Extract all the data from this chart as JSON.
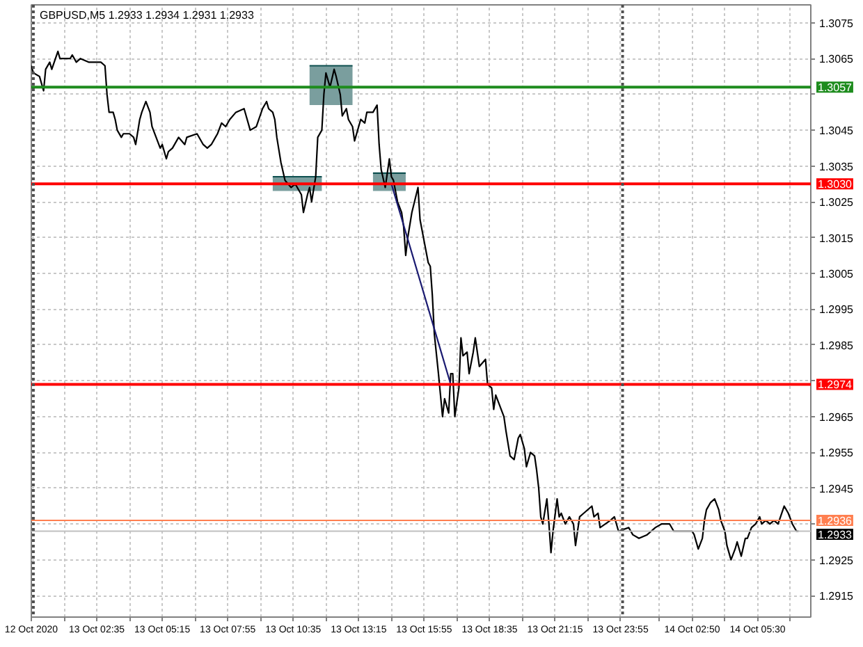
{
  "chart_data": {
    "type": "line",
    "title": "GBPUSD,M5 1.2933 1.2934 1.2931 1.2933",
    "xlim": [
      "2020-10-12T23:55",
      "2020-10-14T07:40"
    ],
    "ylim": [
      1.2909,
      1.308
    ],
    "xticks": [
      {
        "value": "2020-10-12T23:55",
        "label": "12 Oct 2020"
      },
      {
        "value": "2020-10-13T01:15",
        "label": null
      },
      {
        "value": "2020-10-13T02:35",
        "label": "13 Oct 02:35"
      },
      {
        "value": "2020-10-13T03:55",
        "label": null
      },
      {
        "value": "2020-10-13T05:15",
        "label": "13 Oct 05:15"
      },
      {
        "value": "2020-10-13T06:35",
        "label": null
      },
      {
        "value": "2020-10-13T07:55",
        "label": "13 Oct 07:55"
      },
      {
        "value": "2020-10-13T09:15",
        "label": null
      },
      {
        "value": "2020-10-13T10:35",
        "label": "13 Oct 10:35"
      },
      {
        "value": "2020-10-13T11:55",
        "label": null
      },
      {
        "value": "2020-10-13T13:15",
        "label": "13 Oct 13:15"
      },
      {
        "value": "2020-10-13T14:35",
        "label": null
      },
      {
        "value": "2020-10-13T15:55",
        "label": "13 Oct 15:55"
      },
      {
        "value": "2020-10-13T17:15",
        "label": null
      },
      {
        "value": "2020-10-13T18:35",
        "label": "13 Oct 18:35"
      },
      {
        "value": "2020-10-13T19:55",
        "label": null
      },
      {
        "value": "2020-10-13T21:15",
        "label": "13 Oct 21:15"
      },
      {
        "value": "2020-10-13T22:35",
        "label": null
      },
      {
        "value": "2020-10-13T23:55",
        "label": "13 Oct 23:55"
      },
      {
        "value": "2020-10-14T01:30",
        "label": null
      },
      {
        "value": "2020-10-14T02:50",
        "label": "14 Oct 02:50"
      },
      {
        "value": "2020-10-14T04:10",
        "label": null
      },
      {
        "value": "2020-10-14T05:30",
        "label": "14 Oct 05:30"
      },
      {
        "value": "2020-10-14T06:50",
        "label": null
      }
    ],
    "yticks": [
      1.3075,
      1.3065,
      {
        "value": 1.3055,
        "label": null
      },
      1.3045,
      1.3035,
      1.3025,
      1.3015,
      1.3005,
      1.2995,
      1.2985,
      {
        "value": 1.2975,
        "label": null
      },
      1.2965,
      1.2955,
      1.2945,
      {
        "value": 1.2935,
        "label": null
      },
      1.2925,
      1.2915
    ],
    "grid": true,
    "series": [
      {
        "type": "line",
        "color": "#0d4f4f",
        "x": [
          "2020-10-13T09:45",
          "2020-10-13T11:45"
        ],
        "values": [
          1.3032,
          1.3032
        ],
        "lower": [
          1.3028,
          1.3028
        ],
        "upper": [
          1.3032,
          1.3032
        ]
      },
      {
        "type": "line",
        "color": "#0d4f4f",
        "x": [
          "2020-10-13T11:15",
          "2020-10-13T13:00"
        ],
        "values": [
          1.3063,
          1.3063
        ],
        "lower": [
          1.3052,
          1.3052
        ],
        "upper": [
          1.3063,
          1.3063
        ]
      },
      {
        "type": "line",
        "color": "#0d4f4f",
        "x": [
          "2020-10-13T13:50",
          "2020-10-13T15:10"
        ],
        "values": [
          1.3033,
          1.3033
        ],
        "lower": [
          1.3028,
          1.3028
        ],
        "upper": [
          1.3033,
          1.3033
        ]
      },
      {
        "color": "#000000",
        "x": [
          "2020-10-12T23:55",
          "2020-10-13T00:00",
          "2020-10-13T00:15",
          "2020-10-13T00:25",
          "2020-10-13T00:30",
          "2020-10-13T00:40",
          "2020-10-13T00:45",
          "2020-10-13T01:00",
          "2020-10-13T01:05",
          "2020-10-13T01:30",
          "2020-10-13T01:35",
          "2020-10-13T01:45",
          "2020-10-13T01:55",
          "2020-10-13T02:15",
          "2020-10-13T02:45",
          "2020-10-13T02:55",
          "2020-10-13T03:00",
          "2020-10-13T03:05",
          "2020-10-13T03:15",
          "2020-10-13T03:20",
          "2020-10-13T03:25",
          "2020-10-13T03:35",
          "2020-10-13T03:40",
          "2020-10-13T03:55",
          "2020-10-13T04:05",
          "2020-10-13T04:10",
          "2020-10-13T04:20",
          "2020-10-13T04:25",
          "2020-10-13T04:35",
          "2020-10-13T04:45",
          "2020-10-13T04:50",
          "2020-10-13T05:00",
          "2020-10-13T05:10",
          "2020-10-13T05:15",
          "2020-10-13T05:25",
          "2020-10-13T05:30",
          "2020-10-13T05:40",
          "2020-10-13T05:55",
          "2020-10-13T06:10",
          "2020-10-13T06:15",
          "2020-10-13T06:40",
          "2020-10-13T06:55",
          "2020-10-13T07:05",
          "2020-10-13T07:15",
          "2020-10-13T07:25",
          "2020-10-13T07:30",
          "2020-10-13T07:40",
          "2020-10-13T07:50",
          "2020-10-13T08:00",
          "2020-10-13T08:15",
          "2020-10-13T08:35",
          "2020-10-13T08:40",
          "2020-10-13T08:50",
          "2020-10-13T09:05",
          "2020-10-13T09:20",
          "2020-10-13T09:30",
          "2020-10-13T09:35",
          "2020-10-13T09:45",
          "2020-10-13T09:50",
          "2020-10-13T09:55",
          "2020-10-13T10:05",
          "2020-10-13T10:15",
          "2020-10-13T10:30",
          "2020-10-13T10:40",
          "2020-10-13T10:45",
          "2020-10-13T10:55",
          "2020-10-13T11:00",
          "2020-10-13T11:10",
          "2020-10-13T11:15",
          "2020-10-13T11:20",
          "2020-10-13T11:30",
          "2020-10-13T11:35",
          "2020-10-13T11:45",
          "2020-10-13T11:50",
          "2020-10-13T11:55",
          "2020-10-13T12:05",
          "2020-10-13T12:15",
          "2020-10-13T12:20",
          "2020-10-13T12:30",
          "2020-10-13T12:35",
          "2020-10-13T12:45",
          "2020-10-13T12:50",
          "2020-10-13T13:00",
          "2020-10-13T13:05",
          "2020-10-13T13:15",
          "2020-10-13T13:20",
          "2020-10-13T13:30",
          "2020-10-13T13:35",
          "2020-10-13T13:50",
          "2020-10-13T14:00",
          "2020-10-13T14:05",
          "2020-10-13T14:10",
          "2020-10-13T14:20",
          "2020-10-13T14:25",
          "2020-10-13T14:30",
          "2020-10-13T14:35",
          "2020-10-13T14:40",
          "2020-10-13T14:50",
          "2020-10-13T15:00",
          "2020-10-13T15:05",
          "2020-10-13T15:10",
          "2020-10-13T15:15",
          "2020-10-13T15:25",
          "2020-10-13T15:40",
          "2020-10-13T15:45",
          "2020-10-13T15:55",
          "2020-10-13T16:05",
          "2020-10-13T16:10",
          "2020-10-13T16:15",
          "2020-10-13T16:20",
          "2020-10-13T16:30",
          "2020-10-13T16:40",
          "2020-10-13T16:45",
          "2020-10-13T16:55",
          "2020-10-13T17:00",
          "2020-10-13T17:05",
          "2020-10-13T17:10",
          "2020-10-13T17:20",
          "2020-10-13T17:25",
          "2020-10-13T17:30",
          "2020-10-13T17:40",
          "2020-10-13T17:45",
          "2020-10-13T17:55",
          "2020-10-13T18:00",
          "2020-10-13T18:10",
          "2020-10-13T18:25",
          "2020-10-13T18:30",
          "2020-10-13T18:40",
          "2020-10-13T18:45",
          "2020-10-13T18:50",
          "2020-10-13T19:00",
          "2020-10-13T19:10",
          "2020-10-13T19:15",
          "2020-10-13T19:25",
          "2020-10-13T19:35",
          "2020-10-13T19:45",
          "2020-10-13T19:50",
          "2020-10-13T20:00",
          "2020-10-13T20:05",
          "2020-10-13T20:15",
          "2020-10-13T20:25",
          "2020-10-13T20:30",
          "2020-10-13T20:35",
          "2020-10-13T20:40",
          "2020-10-13T20:45",
          "2020-10-13T20:55",
          "2020-10-13T21:00",
          "2020-10-13T21:05",
          "2020-10-13T21:10",
          "2020-10-13T21:20",
          "2020-10-13T21:25",
          "2020-10-13T21:30",
          "2020-10-13T21:40",
          "2020-10-13T21:50",
          "2020-10-13T22:00",
          "2020-10-13T22:05",
          "2020-10-13T22:15",
          "2020-10-13T22:25",
          "2020-10-13T22:45",
          "2020-10-13T22:50",
          "2020-10-13T23:00",
          "2020-10-13T23:05",
          "2020-10-13T23:30",
          "2020-10-13T23:40",
          "2020-10-13T23:50",
          "2020-10-14T00:15",
          "2020-10-14T00:25",
          "2020-10-14T00:40",
          "2020-10-14T01:00",
          "2020-10-14T01:20",
          "2020-10-14T01:35",
          "2020-10-14T01:55",
          "2020-10-14T02:05",
          "2020-10-14T02:25",
          "2020-10-14T02:50",
          "2020-10-14T02:55",
          "2020-10-14T03:05",
          "2020-10-14T03:15",
          "2020-10-14T03:20",
          "2020-10-14T03:25",
          "2020-10-14T03:35",
          "2020-10-14T03:45",
          "2020-10-14T03:55",
          "2020-10-14T04:00",
          "2020-10-14T04:10",
          "2020-10-14T04:15",
          "2020-10-14T04:25",
          "2020-10-14T04:35",
          "2020-10-14T04:40",
          "2020-10-14T04:50",
          "2020-10-14T05:00",
          "2020-10-14T05:05",
          "2020-10-14T05:15",
          "2020-10-14T05:25",
          "2020-10-14T05:35",
          "2020-10-14T05:40",
          "2020-10-14T05:50",
          "2020-10-14T06:00",
          "2020-10-14T06:10",
          "2020-10-14T06:20",
          "2020-10-14T06:35",
          "2020-10-14T06:45",
          "2020-10-14T06:55",
          "2020-10-14T07:05",
          "2020-10-14T07:10"
        ],
        "values": [
          1.3063,
          1.3061,
          1.306,
          1.3056,
          1.3062,
          1.3064,
          1.3062,
          1.3067,
          1.3065,
          1.3065,
          1.3066,
          1.3064,
          1.3065,
          1.3064,
          1.3064,
          1.3063,
          1.3055,
          1.305,
          1.305,
          1.3048,
          1.3045,
          1.3043,
          1.3044,
          1.3044,
          1.3043,
          1.3041,
          1.3048,
          1.305,
          1.3053,
          1.305,
          1.3046,
          1.3043,
          1.304,
          1.3041,
          1.3037,
          1.3039,
          1.304,
          1.3043,
          1.3041,
          1.3043,
          1.3044,
          1.3041,
          1.304,
          1.3041,
          1.3043,
          1.3044,
          1.3047,
          1.3046,
          1.3048,
          1.305,
          1.3051,
          1.3049,
          1.3045,
          1.3046,
          1.3051,
          1.3053,
          1.3051,
          1.305,
          1.3048,
          1.3043,
          1.3036,
          1.3031,
          1.3029,
          1.303,
          1.3029,
          1.3027,
          1.3022,
          1.3027,
          1.3029,
          1.3025,
          1.3032,
          1.3043,
          1.3045,
          1.3055,
          1.3061,
          1.3057,
          1.3062,
          1.306,
          1.3055,
          1.3049,
          1.3051,
          1.3048,
          1.3046,
          1.3042,
          1.3046,
          1.3048,
          1.3047,
          1.305,
          1.305,
          1.3052,
          1.3041,
          1.3034,
          1.3029,
          1.3033,
          1.3037,
          1.3032,
          1.3031,
          1.3025,
          1.3022,
          1.3018,
          1.301,
          1.3015,
          1.3022,
          1.3029,
          1.302,
          1.3014,
          1.3008,
          1.3007,
          1.2999,
          1.2988,
          1.2977,
          1.2965,
          1.297,
          1.2966,
          1.2977,
          1.2977,
          1.2965,
          1.2973,
          1.2987,
          1.2982,
          1.2983,
          1.2977,
          1.2983,
          1.2987,
          1.2979,
          1.2981,
          1.2974,
          1.2973,
          1.2967,
          1.2971,
          1.2968,
          1.2965,
          1.2961,
          1.2954,
          1.2953,
          1.2959,
          1.296,
          1.2956,
          1.2951,
          1.2955,
          1.2954,
          1.295,
          1.2945,
          1.2937,
          1.2935,
          1.2942,
          1.2935,
          1.2927,
          1.2933,
          1.2942,
          1.2937,
          1.2938,
          1.2935,
          1.2937,
          1.2935,
          1.2929,
          1.2937,
          1.2938,
          1.294,
          1.2937,
          1.2938,
          1.2934,
          1.2936,
          1.2937,
          1.2933,
          1.2934,
          1.2932,
          1.2931,
          1.2932,
          1.2934,
          1.2935,
          1.2935,
          1.2933,
          1.2933,
          1.2933,
          1.2932,
          1.2928,
          1.2931,
          1.2936,
          1.2939,
          1.2941,
          1.2942,
          1.2939,
          1.2936,
          1.2933,
          1.2929,
          1.2925,
          1.2928,
          1.293,
          1.2926,
          1.2931,
          1.2931,
          1.2934,
          1.2935,
          1.2937,
          1.2935,
          1.2936,
          1.2935,
          1.2936,
          1.2935,
          1.294,
          1.2938,
          1.2935,
          1.2933,
          1.2933
        ]
      },
      {
        "type": "line",
        "color": "#191970",
        "x": [
          "2020-10-13T14:35",
          "2020-10-13T17:00"
        ],
        "values": [
          1.303,
          1.2974
        ]
      }
    ],
    "ref_lines": [
      {
        "axis": "y",
        "value": 1.3057,
        "label": "1.3057",
        "color": "#1e8c1e"
      },
      {
        "axis": "y",
        "value": 1.303,
        "label": "1.3030",
        "color": "#ff0000"
      },
      {
        "axis": "y",
        "value": 1.2974,
        "label": "1.2974",
        "color": "#ff0000"
      },
      {
        "axis": "y",
        "value": 1.2936,
        "label": "1.2936",
        "color": "#ff7f50"
      },
      {
        "axis": "y",
        "value": 1.2933,
        "label": "1.2933",
        "color": "#c0c0c0"
      },
      {
        "axis": "x",
        "value": "2020-10-13",
        "color": "#505050",
        "line_style": "dotted"
      },
      {
        "axis": "x",
        "value": "2020-10-14",
        "color": "#505050",
        "line_style": "dotted"
      }
    ]
  }
}
